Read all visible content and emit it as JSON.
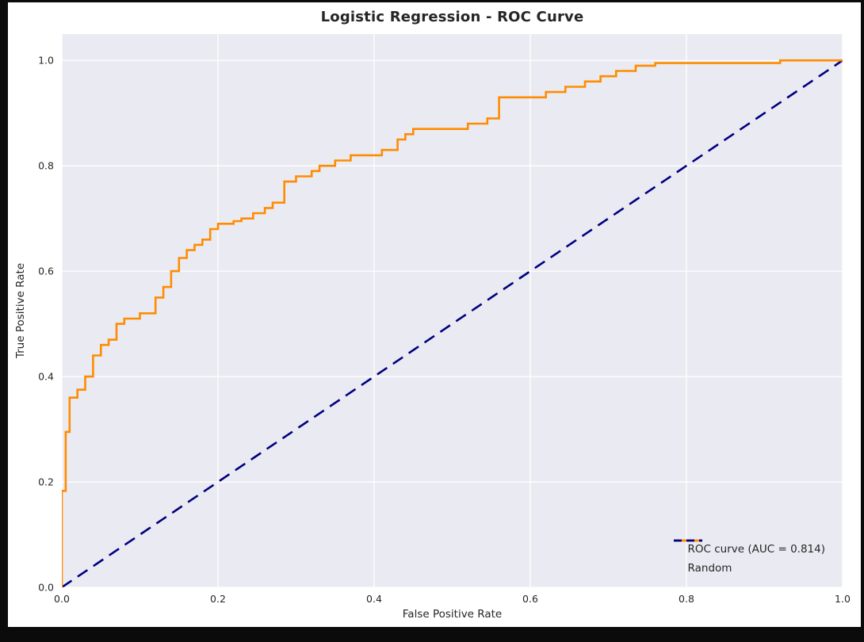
{
  "chart_data": {
    "type": "line",
    "title": "Logistic Regression - ROC Curve",
    "xlabel": "False Positive Rate",
    "ylabel": "True Positive Rate",
    "xlim": [
      0,
      1.0
    ],
    "ylim": [
      0,
      1.05
    ],
    "grid": true,
    "plot_background": "#EAEAF2",
    "grid_color": "#FFFFFF",
    "xticks": [
      "0.0",
      "0.2",
      "0.4",
      "0.6",
      "0.8",
      "1.0"
    ],
    "yticks": [
      "0.0",
      "0.2",
      "0.4",
      "0.6",
      "0.8",
      "1.0"
    ],
    "legend_position": "lower right",
    "auc": 0.814,
    "series": [
      {
        "name": "ROC curve (AUC = 0.814)",
        "color": "#FF8C00",
        "style": "solid",
        "points": [
          [
            0.0,
            0.0
          ],
          [
            0.0,
            0.183
          ],
          [
            0.005,
            0.183
          ],
          [
            0.005,
            0.295
          ],
          [
            0.01,
            0.295
          ],
          [
            0.01,
            0.36
          ],
          [
            0.02,
            0.36
          ],
          [
            0.02,
            0.375
          ],
          [
            0.03,
            0.375
          ],
          [
            0.03,
            0.4
          ],
          [
            0.04,
            0.4
          ],
          [
            0.04,
            0.44
          ],
          [
            0.05,
            0.44
          ],
          [
            0.05,
            0.46
          ],
          [
            0.06,
            0.46
          ],
          [
            0.06,
            0.47
          ],
          [
            0.07,
            0.47
          ],
          [
            0.07,
            0.5
          ],
          [
            0.08,
            0.5
          ],
          [
            0.08,
            0.51
          ],
          [
            0.1,
            0.51
          ],
          [
            0.1,
            0.52
          ],
          [
            0.12,
            0.52
          ],
          [
            0.12,
            0.55
          ],
          [
            0.13,
            0.55
          ],
          [
            0.13,
            0.57
          ],
          [
            0.14,
            0.57
          ],
          [
            0.14,
            0.6
          ],
          [
            0.15,
            0.6
          ],
          [
            0.15,
            0.625
          ],
          [
            0.16,
            0.625
          ],
          [
            0.16,
            0.64
          ],
          [
            0.17,
            0.64
          ],
          [
            0.17,
            0.65
          ],
          [
            0.18,
            0.65
          ],
          [
            0.18,
            0.66
          ],
          [
            0.19,
            0.66
          ],
          [
            0.19,
            0.68
          ],
          [
            0.2,
            0.68
          ],
          [
            0.2,
            0.69
          ],
          [
            0.22,
            0.69
          ],
          [
            0.22,
            0.695
          ],
          [
            0.23,
            0.695
          ],
          [
            0.23,
            0.7
          ],
          [
            0.245,
            0.7
          ],
          [
            0.245,
            0.71
          ],
          [
            0.26,
            0.71
          ],
          [
            0.26,
            0.72
          ],
          [
            0.27,
            0.72
          ],
          [
            0.27,
            0.73
          ],
          [
            0.285,
            0.73
          ],
          [
            0.285,
            0.77
          ],
          [
            0.3,
            0.77
          ],
          [
            0.3,
            0.78
          ],
          [
            0.32,
            0.78
          ],
          [
            0.32,
            0.79
          ],
          [
            0.33,
            0.79
          ],
          [
            0.33,
            0.8
          ],
          [
            0.35,
            0.8
          ],
          [
            0.35,
            0.81
          ],
          [
            0.37,
            0.81
          ],
          [
            0.37,
            0.82
          ],
          [
            0.38,
            0.82
          ],
          [
            0.41,
            0.82
          ],
          [
            0.41,
            0.83
          ],
          [
            0.43,
            0.83
          ],
          [
            0.43,
            0.85
          ],
          [
            0.44,
            0.85
          ],
          [
            0.44,
            0.86
          ],
          [
            0.45,
            0.86
          ],
          [
            0.45,
            0.87
          ],
          [
            0.47,
            0.87
          ],
          [
            0.52,
            0.87
          ],
          [
            0.52,
            0.88
          ],
          [
            0.545,
            0.88
          ],
          [
            0.545,
            0.89
          ],
          [
            0.56,
            0.89
          ],
          [
            0.56,
            0.93
          ],
          [
            0.575,
            0.93
          ],
          [
            0.62,
            0.93
          ],
          [
            0.62,
            0.94
          ],
          [
            0.645,
            0.94
          ],
          [
            0.645,
            0.95
          ],
          [
            0.67,
            0.95
          ],
          [
            0.67,
            0.96
          ],
          [
            0.69,
            0.96
          ],
          [
            0.69,
            0.97
          ],
          [
            0.71,
            0.97
          ],
          [
            0.71,
            0.98
          ],
          [
            0.735,
            0.98
          ],
          [
            0.735,
            0.99
          ],
          [
            0.76,
            0.99
          ],
          [
            0.76,
            0.995
          ],
          [
            0.78,
            0.995
          ],
          [
            0.92,
            0.995
          ],
          [
            0.92,
            1.0
          ],
          [
            1.0,
            1.0
          ]
        ]
      },
      {
        "name": "Random",
        "color": "#000080",
        "style": "dashed",
        "points": [
          [
            0.0,
            0.0
          ],
          [
            1.0,
            1.0
          ]
        ]
      }
    ]
  }
}
